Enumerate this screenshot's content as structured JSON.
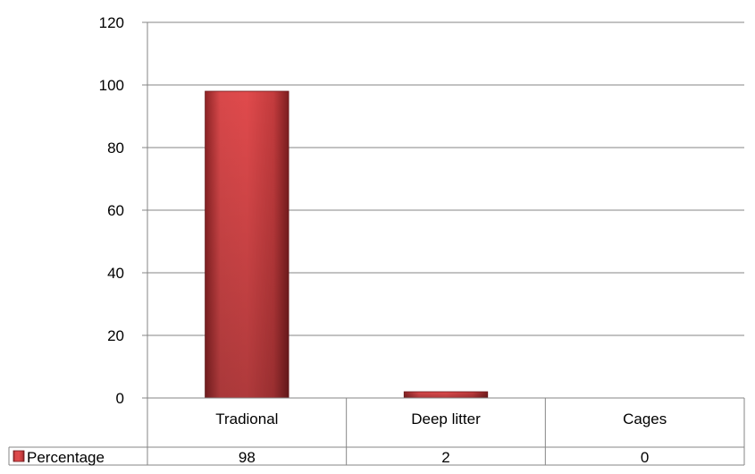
{
  "chart_data": {
    "type": "bar",
    "title": "",
    "xlabel": "",
    "ylabel": "",
    "categories": [
      "Tradional",
      "Deep litter",
      "Cages"
    ],
    "series": [
      {
        "name": "Percentage",
        "values": [
          98,
          2,
          0
        ],
        "color": "#c0393b"
      }
    ],
    "ylim": [
      0,
      120
    ],
    "yticks": [
      0,
      20,
      40,
      60,
      80,
      100,
      120
    ],
    "grid": true,
    "legend": "data-table-left",
    "data_table": true
  }
}
